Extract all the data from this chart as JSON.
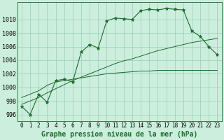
{
  "title": "Graphe pression niveau de la mer (hPa)",
  "bg_color": "#cceedd",
  "grid_color": "#99ccbb",
  "line_color": "#1a6b2a",
  "x_labels": [
    "0",
    "1",
    "2",
    "3",
    "4",
    "5",
    "6",
    "7",
    "8",
    "9",
    "10",
    "11",
    "12",
    "13",
    "14",
    "15",
    "16",
    "17",
    "18",
    "19",
    "20",
    "21",
    "22",
    "23"
  ],
  "ylim": [
    995.0,
    1012.5
  ],
  "yticks": [
    996,
    998,
    1000,
    1002,
    1004,
    1006,
    1008,
    1010
  ],
  "pressure": [
    997.2,
    996.0,
    999.0,
    997.8,
    1001.0,
    1001.2,
    1000.8,
    1005.2,
    1006.3,
    1005.8,
    1009.8,
    1010.2,
    1010.1,
    1010.0,
    1011.3,
    1011.5,
    1011.4,
    1011.6,
    1011.5,
    1011.4,
    1008.3,
    1007.5,
    1006.0,
    1004.8
  ],
  "trend_flat": [
    998.5,
    999.0,
    999.5,
    1000.3,
    1000.8,
    1001.0,
    1001.2,
    1001.4,
    1001.6,
    1001.8,
    1002.0,
    1002.1,
    1002.2,
    1002.3,
    1002.4,
    1002.4,
    1002.5,
    1002.5,
    1002.5,
    1002.5,
    1002.5,
    1002.5,
    1002.5,
    1002.5
  ],
  "trend_rise": [
    997.5,
    998.0,
    998.5,
    999.2,
    999.8,
    1000.4,
    1001.0,
    1001.5,
    1002.0,
    1002.5,
    1003.0,
    1003.5,
    1003.9,
    1004.2,
    1004.6,
    1005.0,
    1005.4,
    1005.7,
    1006.0,
    1006.3,
    1006.6,
    1006.8,
    1007.0,
    1007.2
  ],
  "tick_fontsize": 6.0,
  "label_fontsize": 7.0
}
